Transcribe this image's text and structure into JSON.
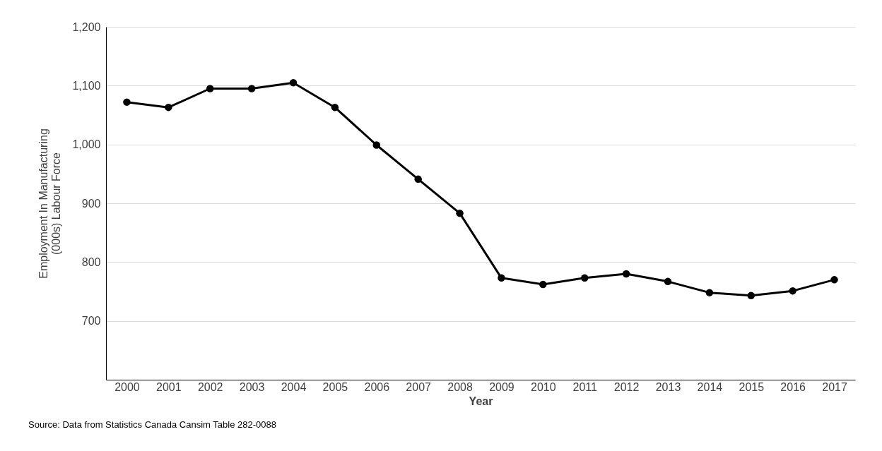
{
  "chart_data": {
    "type": "line",
    "xlabel": "Year",
    "ylabel": "Employment In Manufacturing\n(000s) Labour Force",
    "categories": [
      "2000",
      "2001",
      "2002",
      "2003",
      "2004",
      "2005",
      "2006",
      "2007",
      "2008",
      "2009",
      "2010",
      "2011",
      "2012",
      "2013",
      "2014",
      "2015",
      "2016",
      "2017"
    ],
    "series": [
      {
        "color": "#000000",
        "values": [
          1072,
          1063,
          1095,
          1095,
          1105,
          1063,
          999,
          941,
          883,
          773,
          762,
          773,
          780,
          767,
          748,
          743,
          751,
          770
        ]
      }
    ],
    "ylim": [
      600,
      1200
    ],
    "yticks": [
      700,
      800,
      900,
      {
        "value": 1000,
        "label": "1,000"
      },
      {
        "value": 1100,
        "label": "1,100"
      },
      {
        "value": 1200,
        "label": "1,200"
      }
    ],
    "grid": "y",
    "marker": "circle",
    "line_style": "solid",
    "annotations": [
      "Source: Data from Statistics Canada Cansim Table 282-0088"
    ]
  }
}
